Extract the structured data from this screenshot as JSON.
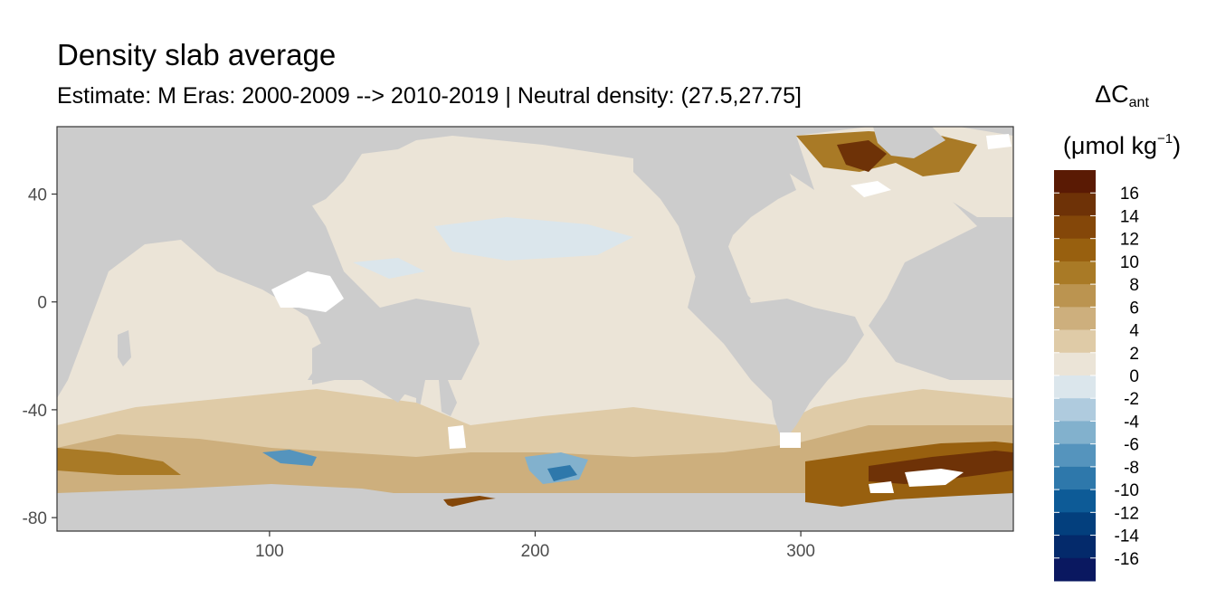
{
  "chart_data": {
    "type": "heatmap",
    "title": "Density slab average",
    "subtitle": "Estimate: M Eras: 2000-2009 --> 2010-2019 | Neutral density: (27.5,27.75]",
    "legend": {
      "title_main": "ΔC",
      "title_sub": "ant",
      "title_unit_pre": "(μmol kg",
      "title_unit_sup": "−1",
      "title_unit_post": ")",
      "placement": "right",
      "breaks": [
        "16",
        "14",
        "12",
        "10",
        "8",
        "6",
        "4",
        "2",
        "0",
        "-2",
        "-4",
        "-6",
        "-8",
        "-10",
        "-12",
        "-14",
        "-16"
      ],
      "colors": [
        "#5a1a04",
        "#6e3207",
        "#844709",
        "#98600f",
        "#a97a26",
        "#bb9450",
        "#cdaf7d",
        "#dfcba7",
        "#ebe4d7",
        "#dbe6ec",
        "#afcbde",
        "#82b1cd",
        "#5594bd",
        "#2e78ab",
        "#0d5b97",
        "#033f7d",
        "#042a6b",
        "#0a1860"
      ]
    },
    "x_axis": {
      "ticks": [
        100,
        200,
        300
      ],
      "range": [
        20,
        380
      ]
    },
    "y_axis": {
      "ticks": [
        40,
        0,
        -40,
        -80
      ],
      "range": [
        -85,
        65
      ]
    },
    "background_color": "#cccccc",
    "grid": false
  }
}
